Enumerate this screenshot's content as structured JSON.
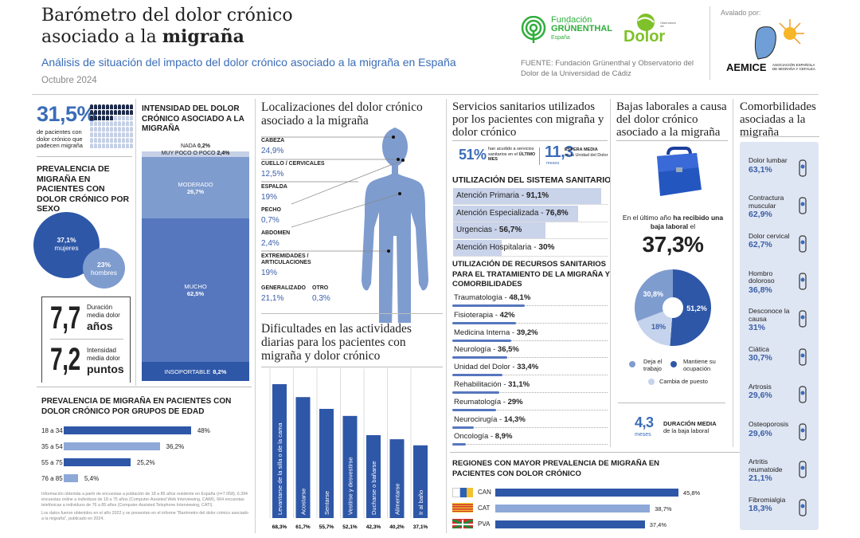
{
  "header": {
    "title_line1": "Barómetro del dolor crónico",
    "title_line2_pre": "asociado a la ",
    "title_line2_bold": "migraña",
    "subtitle": "Análisis de situación del impacto del dolor crónico asociado a la migraña en España",
    "date": "Octubre 2024",
    "logo_grunenthal": [
      "Fundación",
      "GRÜNENTHAL",
      "España"
    ],
    "logo_observatorio": [
      "Observatorio",
      "del",
      "Dolor"
    ],
    "source": "FUENTE: Fundación Grünenthal y Observatorio del Dolor de la Universidad de Cádiz",
    "endorsed_by": "Avalado por:",
    "aemice": "AEMICE",
    "aemice_sub": "ASOCIACIÓN ESPAÑOLA DE MIGRAÑA Y CEFALEA"
  },
  "colors": {
    "dark": "#2e57a7",
    "mid": "#5677be",
    "light": "#8ea9d8",
    "lightest": "#c5d3ec",
    "panel": "#dfe6f3"
  },
  "prevalence": {
    "value": "31,5%",
    "fraction": 0.315,
    "label": "de pacientes con dolor crónico que padecen migraña"
  },
  "sex": {
    "title": "PREVALENCIA DE MIGRAÑA EN PACIENTES CON DOLOR CRÓNICO POR SEXO",
    "women_value": "37,1%",
    "women_label": "mujeres",
    "men_value": "23%",
    "men_label": "hombres"
  },
  "duration": {
    "value": "7,7",
    "label": "Duración media dolor",
    "unit": "años"
  },
  "intensity_avg": {
    "value": "7,2",
    "label": "Intensidad media dolor",
    "unit": "puntos"
  },
  "intensity": {
    "title": "INTENSIDAD DEL DOLOR CRÓNICO ASOCIADO A LA MIGRAÑA",
    "segments": [
      {
        "label": "NADA",
        "value": "0,2%",
        "pct": 0.2
      },
      {
        "label": "MUY POCO O POCO",
        "value": "2,4%",
        "pct": 2.4
      },
      {
        "label": "MODERADO",
        "value": "26,7%",
        "pct": 26.7
      },
      {
        "label": "MUCHO",
        "value": "62,5%",
        "pct": 62.5
      },
      {
        "label": "INSOPORTABLE",
        "value": "8,2%",
        "pct": 8.2
      }
    ]
  },
  "age": {
    "title": "PREVALENCIA DE MIGRAÑA EN PACIENTES CON DOLOR CRÓNICO POR GRUPOS DE EDAD",
    "rows": [
      {
        "label": "18 a 34",
        "value": "48%",
        "pct": 48
      },
      {
        "label": "35 a 54",
        "value": "36,2%",
        "pct": 36.2
      },
      {
        "label": "55 a 75",
        "value": "25,2%",
        "pct": 25.2
      },
      {
        "label": "76 a 85",
        "value": "5,4%",
        "pct": 5.4
      }
    ],
    "footnote1": "Información obtenida a partir de encuestas a población de 18 a 85 años residente en España (n=7.058), 6.394 encuestas online a individuos de 18 a 75 años (Computer-Assisted Web Interviewing, CAWI), 664 encuestas telefónicas a individuos de 76 a 85 años (Computer-Assisted Telephone Interviewing, CATI).",
    "footnote2": "Los datos fueron obtenidos en el año 2022 y se presentan en el informe \"Barómetro del dolor crónico asociado a la migraña\", publicado en 2024."
  },
  "locations": {
    "title": "Localizaciones del dolor crónico asociado a la migraña",
    "items": [
      {
        "label": "CABEZA",
        "value": "24,9%"
      },
      {
        "label": "CUELLO / CERVICALES",
        "value": "12,5%"
      },
      {
        "label": "ESPALDA",
        "value": "19%"
      },
      {
        "label": "PECHO",
        "value": "0,7%"
      },
      {
        "label": "ABDOMEN",
        "value": "2,4%"
      },
      {
        "label": "EXTREMIDADES / ARTICULACIONES",
        "value": "19%"
      },
      {
        "label": "GENERALIZADO",
        "value": "21,1%"
      },
      {
        "label": "OTRO",
        "value": "0,3%"
      }
    ]
  },
  "chart_data": {
    "type": "bar",
    "title": "Dificultades en las actividades diarias para los pacientes con migraña y dolor crónico",
    "categories": [
      "Levantarse de la silla o de la cama",
      "Acostarse",
      "Sentarse",
      "Vestirse y desvestirse",
      "Ducharse o bañarse",
      "Alimentarse",
      "Ir al baño"
    ],
    "values": [
      68.3,
      61.7,
      55.7,
      52.1,
      42.3,
      40.2,
      37.1
    ],
    "labels": [
      "68,3%",
      "61,7%",
      "55,7%",
      "52,1%",
      "42,3%",
      "40,2%",
      "37,1%"
    ]
  },
  "services": {
    "title": "Servicios sanitarios utilizados por los pacientes con migraña y dolor crónico",
    "stat1_value": "51%",
    "stat1_label_pre": "han acudido a servicios sanitarios en el ",
    "stat1_label_bold": "ÚLTIMO MES",
    "stat2_value": "11,3",
    "stat2_unit": "meses",
    "stat2_label_bold": "ESPERA MEDIA",
    "stat2_label": "en la Unidad del Dolor",
    "system_title": "UTILIZACIÓN DEL SISTEMA SANITARIO",
    "system": [
      {
        "label": "Atención Primaria - ",
        "value": "91,1%",
        "pct": 91.1
      },
      {
        "label": "Atención Especializada - ",
        "value": "76,8%",
        "pct": 76.8
      },
      {
        "label": "Urgencias - ",
        "value": "56,7%",
        "pct": 56.7
      },
      {
        "label": "Atención Hospitalaria - ",
        "value": "30%",
        "pct": 30
      }
    ],
    "resources_title": "UTILIZACIÓN DE RECURSOS SANITARIOS PARA EL TRATAMIENTO DE LA MIGRAÑA Y COMORBILIDADES",
    "resources": [
      {
        "label": "Traumatología - ",
        "value": "48,1%",
        "pct": 48.1
      },
      {
        "label": "Fisioterapia - ",
        "value": "42%",
        "pct": 42
      },
      {
        "label": "Medicina Interna - ",
        "value": "39,2%",
        "pct": 39.2
      },
      {
        "label": "Neurología - ",
        "value": "36,5%",
        "pct": 36.5
      },
      {
        "label": "Unidad del Dolor - ",
        "value": "33,4%",
        "pct": 33.4
      },
      {
        "label": "Rehabilitación - ",
        "value": "31,1%",
        "pct": 31.1
      },
      {
        "label": "Reumatología - ",
        "value": "29%",
        "pct": 29
      },
      {
        "label": "Neurocirugía - ",
        "value": "14,3%",
        "pct": 14.3
      },
      {
        "label": "Oncología - ",
        "value": "8,9%",
        "pct": 8.9
      }
    ]
  },
  "regions": {
    "title": "REGIONES CON MAYOR PREVALENCIA DE MIGRAÑA EN PACIENTES CON DOLOR CRÓNICO",
    "rows": [
      {
        "label": "CAN",
        "value": "45,8%",
        "pct": 45.8
      },
      {
        "label": "CAT",
        "value": "38,7%",
        "pct": 38.7
      },
      {
        "label": "PVA",
        "value": "37,4%",
        "pct": 37.4
      }
    ]
  },
  "leave": {
    "title": "Bajas laborales a causa del dolor crónico asociado a la migraña",
    "text_pre": "En el último año ",
    "text_bold": "ha recibido una baja laboral",
    "text_post": " el",
    "value": "37,3%",
    "pie": [
      {
        "label": "Mantiene su ocupación",
        "value": "51,2%",
        "pct": 51.2
      },
      {
        "label": "Cambia de puesto",
        "value": "18%",
        "pct": 18
      },
      {
        "label": "Deja el trabajo",
        "value": "30,8%",
        "pct": 30.8
      }
    ],
    "duration_value": "4,3",
    "duration_unit": "meses",
    "duration_bold": "DURACIÓN MEDIA",
    "duration_label": "de la baja laboral"
  },
  "comorbidities": {
    "title": "Comorbilidades asociadas a la migraña",
    "items": [
      {
        "label": "Dolor lumbar",
        "value": "63,1%",
        "icon": "spine-lumbar-icon"
      },
      {
        "label": "Contractura muscular",
        "value": "62,9%",
        "icon": "muscle-icon"
      },
      {
        "label": "Dolor cervical",
        "value": "62,7%",
        "icon": "spine-cervical-icon"
      },
      {
        "label": "Hombro doloroso",
        "value": "36,8%",
        "icon": "shoulder-skeleton-icon"
      },
      {
        "label": "Desconoce la causa",
        "value": "31%",
        "icon": "question-bulb-icon"
      },
      {
        "label": "Ciática",
        "value": "30,7%",
        "icon": "back-nerve-icon"
      },
      {
        "label": "Artrosis",
        "value": "29,6%",
        "icon": "knee-joint-icon"
      },
      {
        "label": "Osteoporosis",
        "value": "29,6%",
        "icon": "pelvis-icon"
      },
      {
        "label": "Artritis reumatoide",
        "value": "21,1%",
        "icon": "hand-skeleton-icon"
      },
      {
        "label": "Fibromialgia",
        "value": "18,3%",
        "icon": "body-outline-icon"
      }
    ]
  }
}
